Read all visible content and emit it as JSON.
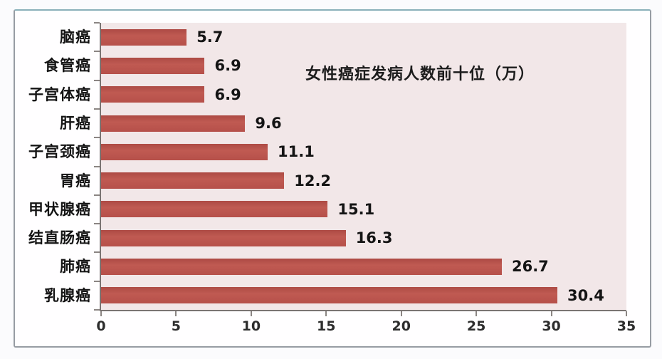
{
  "chart_data": {
    "type": "bar",
    "orientation": "horizontal",
    "title": "女性癌症发病人数前十位（万）",
    "categories": [
      "脑癌",
      "食管癌",
      "子宫体癌",
      "肝癌",
      "子宫颈癌",
      "胃癌",
      "甲状腺癌",
      "结直肠癌",
      "肺癌",
      "乳腺癌"
    ],
    "values": [
      5.7,
      6.9,
      6.9,
      9.6,
      11.1,
      12.2,
      15.1,
      16.3,
      26.7,
      30.4
    ],
    "value_labels": [
      "5.7",
      "6.9",
      "6.9",
      "9.6",
      "11.1",
      "12.2",
      "15.1",
      "16.3",
      "26.7",
      "30.4"
    ],
    "xlabel": "",
    "ylabel": "",
    "xlim": [
      0,
      35
    ],
    "x_ticks": [
      "0",
      "5",
      "10",
      "15",
      "20",
      "25",
      "30",
      "35"
    ],
    "grid": false,
    "legend": null,
    "value_labels_shown": true,
    "colors": {
      "bar": "#b6504a",
      "plot_background": "#f2e7e8",
      "panel_background": "#fffeff",
      "axis_line": "#7a7472",
      "text": "#141414"
    }
  }
}
